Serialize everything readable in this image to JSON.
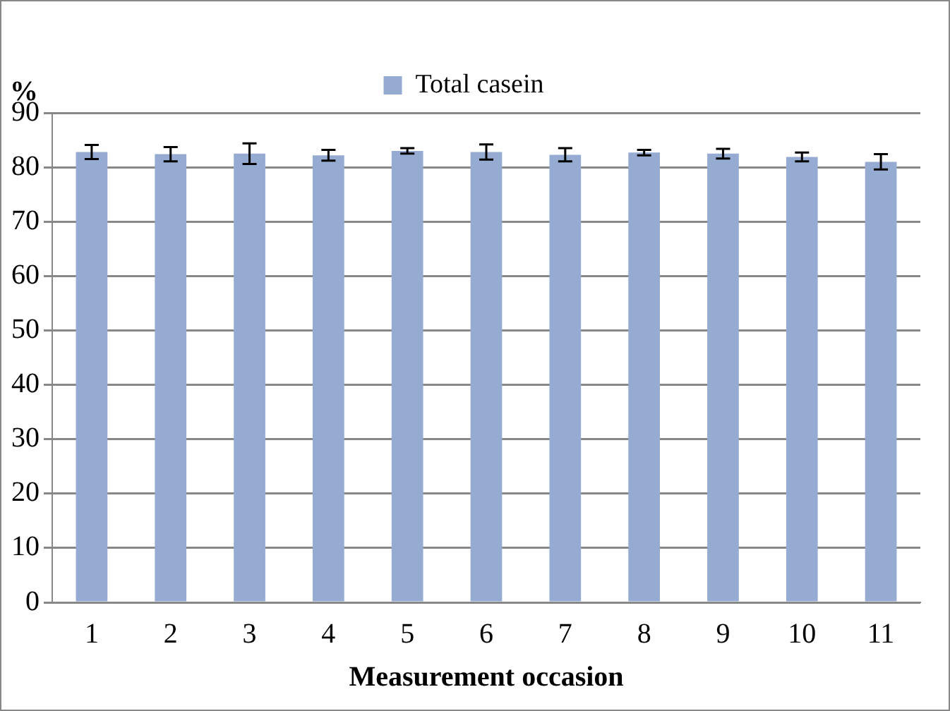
{
  "chart_data": {
    "type": "bar",
    "ylabel": "%",
    "xlabel": "Measurement occasion",
    "categories": [
      "1",
      "2",
      "3",
      "4",
      "5",
      "6",
      "7",
      "8",
      "9",
      "10",
      "11"
    ],
    "series": [
      {
        "name": "Total casein",
        "color": "#95abd1",
        "values": [
          82.8,
          82.4,
          82.5,
          82.2,
          83.0,
          82.8,
          82.3,
          82.7,
          82.5,
          81.9,
          81.0
        ],
        "errors": [
          1.3,
          1.3,
          1.9,
          1.0,
          0.5,
          1.4,
          1.2,
          0.5,
          0.9,
          0.8,
          1.4
        ]
      }
    ],
    "ylim": [
      0,
      90
    ],
    "yticks": [
      0,
      10,
      20,
      30,
      40,
      50,
      60,
      70,
      80,
      90
    ],
    "grid": "y",
    "legend": "top"
  }
}
